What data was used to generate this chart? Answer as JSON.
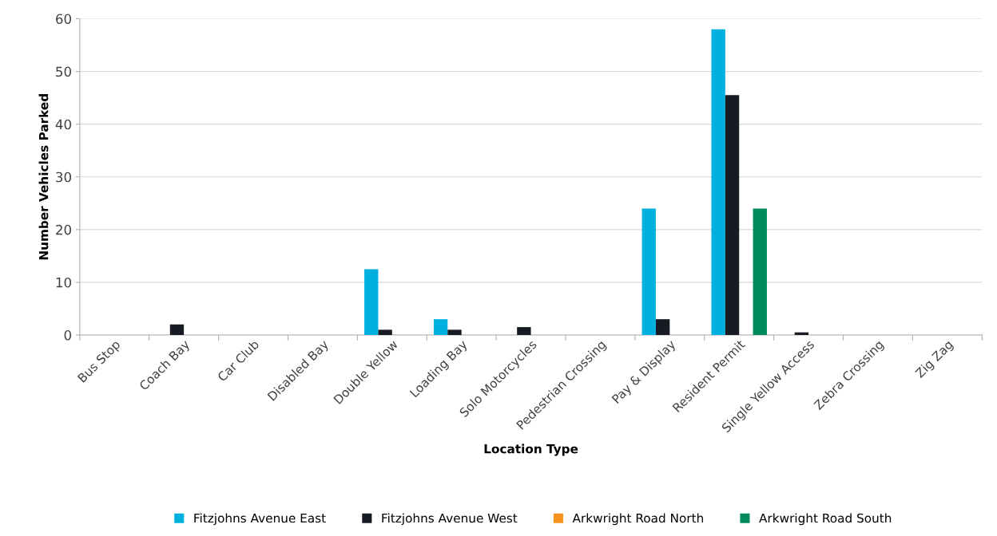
{
  "chart_data": {
    "type": "bar",
    "xlabel": "Location Type",
    "ylabel": "Number Vehicles Parked",
    "categories": [
      "Bus Stop",
      "Coach Bay",
      "Car Club",
      "Disabled Bay",
      "Double Yellow",
      "Loading Bay",
      "Solo Motorcycles",
      "Pedestrian Crossing",
      "Pay & Display",
      "Resident Permit",
      "Single Yellow Access",
      "Zebra Crossing",
      "Zig Zag"
    ],
    "series": [
      {
        "name": "Fitzjohns Avenue East",
        "color": "#00b0de",
        "values": [
          0,
          0,
          0,
          0,
          12.5,
          3,
          0,
          0,
          24,
          58,
          0,
          0,
          0
        ]
      },
      {
        "name": "Fitzjohns Avenue West",
        "color": "#171c24",
        "values": [
          0,
          2,
          0,
          0,
          1,
          1,
          1.5,
          0,
          3,
          45.5,
          0.5,
          0,
          0
        ]
      },
      {
        "name": "Arkwright Road North",
        "color": "#f7941d",
        "values": [
          0,
          0,
          0,
          0,
          0,
          0,
          0,
          0,
          0,
          0,
          0,
          0,
          0
        ]
      },
      {
        "name": "Arkwright Road South",
        "color": "#008a5e",
        "values": [
          0,
          0,
          0,
          0,
          0,
          0,
          0,
          0,
          0,
          24,
          0,
          0,
          0
        ]
      }
    ],
    "ylim": [
      0,
      60
    ],
    "yticks": [
      0,
      10,
      20,
      30,
      40,
      50,
      60
    ],
    "grid": "y",
    "legend": "bottom"
  }
}
